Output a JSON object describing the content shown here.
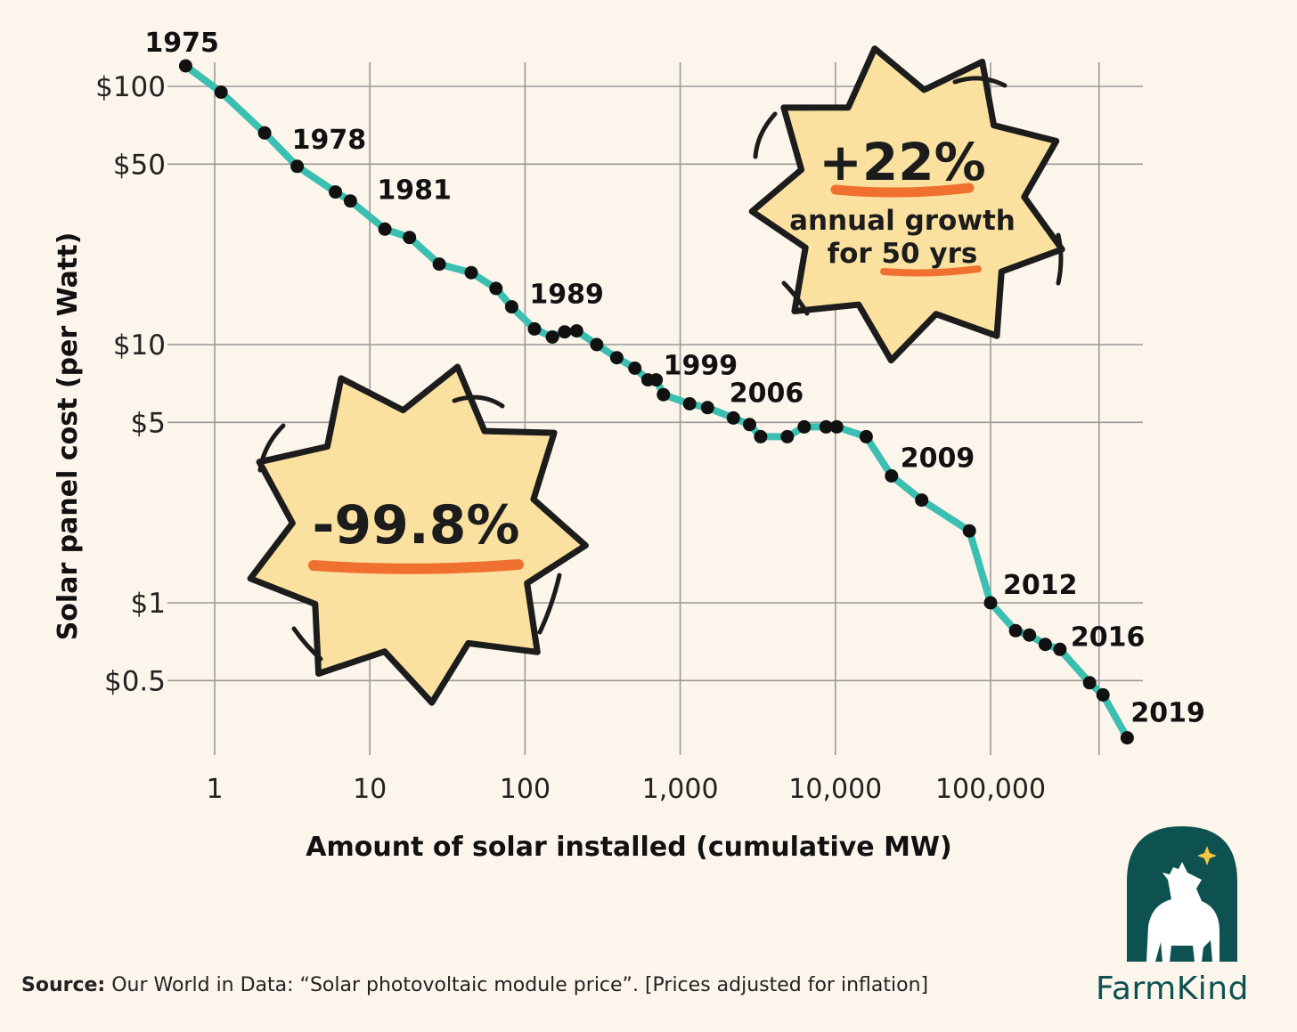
{
  "chart_data": {
    "type": "line",
    "xscale": "log",
    "yscale": "log",
    "xlabel": "Amount of solar installed (cumulative MW)",
    "ylabel": "Solar panel cost (per Watt)",
    "xlim": [
      0.55,
      900000
    ],
    "ylim": [
      0.25,
      145
    ],
    "x_ticks": [
      {
        "value": 1,
        "label": "1"
      },
      {
        "value": 10,
        "label": "10"
      },
      {
        "value": 100,
        "label": "100"
      },
      {
        "value": 1000,
        "label": "1,000"
      },
      {
        "value": 10000,
        "label": "10,000"
      },
      {
        "value": 100000,
        "label": "100,000"
      },
      {
        "value": 500000,
        "label": ""
      }
    ],
    "y_ticks": [
      {
        "value": 100,
        "label": "$100"
      },
      {
        "value": 50,
        "label": "$50"
      },
      {
        "value": 10,
        "label": "$10"
      },
      {
        "value": 5,
        "label": "$5"
      },
      {
        "value": 1,
        "label": "$1"
      },
      {
        "value": 0.5,
        "label": "$0.5"
      }
    ],
    "grid": true,
    "line_color": "#3bbfb0",
    "point_color": "#111111",
    "series": [
      {
        "points": [
          [
            0.65,
            120
          ],
          [
            1.1,
            95
          ],
          [
            2.1,
            66
          ],
          [
            3.4,
            49
          ],
          [
            6,
            39
          ],
          [
            7.5,
            36
          ],
          [
            12.5,
            28
          ],
          [
            18,
            26
          ],
          [
            28,
            20.5
          ],
          [
            45,
            19
          ],
          [
            65,
            16.5
          ],
          [
            82,
            14
          ],
          [
            115,
            11.5
          ],
          [
            150,
            10.7
          ],
          [
            180,
            11.2
          ],
          [
            215,
            11.3
          ],
          [
            290,
            10
          ],
          [
            390,
            8.9
          ],
          [
            510,
            8.1
          ],
          [
            620,
            7.3
          ],
          [
            700,
            7.3
          ],
          [
            780,
            6.4
          ],
          [
            1150,
            5.9
          ],
          [
            1500,
            5.7
          ],
          [
            2200,
            5.2
          ],
          [
            2800,
            4.9
          ],
          [
            3300,
            4.4
          ],
          [
            4900,
            4.4
          ],
          [
            6300,
            4.8
          ],
          [
            8700,
            4.8
          ],
          [
            10200,
            4.8
          ],
          [
            15800,
            4.4
          ],
          [
            23000,
            3.1
          ],
          [
            36000,
            2.5
          ],
          [
            73000,
            1.9
          ],
          [
            100000,
            1.0
          ],
          [
            145000,
            0.78
          ],
          [
            178000,
            0.75
          ],
          [
            225000,
            0.69
          ],
          [
            280000,
            0.66
          ],
          [
            435000,
            0.49
          ],
          [
            530000,
            0.44
          ],
          [
            760000,
            0.3
          ]
        ]
      }
    ],
    "year_labels": [
      {
        "text": "1975",
        "x": 0.65,
        "y": 120
      },
      {
        "text": "1978",
        "x": 3.4,
        "y": 49
      },
      {
        "text": "1981",
        "x": 7.5,
        "y": 36
      },
      {
        "text": "1989",
        "x": 82,
        "y": 14
      },
      {
        "text": "1999",
        "x": 700,
        "y": 7.3
      },
      {
        "text": "2006",
        "x": 6300,
        "y": 4.8
      },
      {
        "text": "2009",
        "x": 23000,
        "y": 3.1
      },
      {
        "text": "2012",
        "x": 100000,
        "y": 1.0
      },
      {
        "text": "2016",
        "x": 280000,
        "y": 0.66
      },
      {
        "text": "2019",
        "x": 760000,
        "y": 0.3
      }
    ],
    "annotations": {
      "growth": {
        "value": "+22%",
        "line1": "annual growth",
        "line2_prefix": "for",
        "line2_highlight": "50 yrs"
      },
      "decline": {
        "value": "-99.8%"
      }
    }
  },
  "source": {
    "label": "Source:",
    "text": "Our World in Data: “Solar photovoltaic module price”. [Prices adjusted for inflation]"
  },
  "brand": {
    "name": "FarmKind",
    "logo_icon": "cow-with-star-logo",
    "color": "#0d5250",
    "accent": "#f5c842"
  },
  "colors": {
    "background": "#fcf5ec",
    "burst_fill": "#fbe1a0",
    "burst_stroke": "#1c1c1c",
    "underline": "#f07030",
    "grid": "#9a9a9a"
  }
}
